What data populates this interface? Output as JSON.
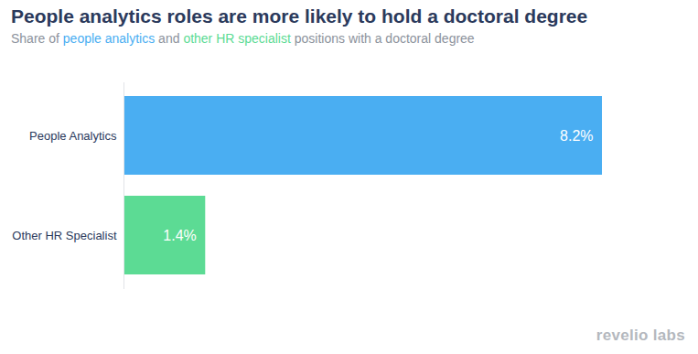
{
  "chart_data": {
    "type": "bar",
    "orientation": "horizontal",
    "title": "People analytics roles are more likely to hold a doctoral degree",
    "subtitle": "Share of people analytics and other HR specialist positions with a doctoral degree",
    "caption": "revelio labs",
    "categories": [
      "People Analytics",
      "Other HR Specialist"
    ],
    "values": [
      8.2,
      1.4
    ],
    "value_labels": [
      "8.2%",
      "1.4%"
    ],
    "colors": [
      "#4aaef2",
      "#5cdb94"
    ],
    "xlim": [
      0,
      8.2
    ],
    "tick_labels": "y",
    "data_labels": true,
    "grid": false
  }
}
